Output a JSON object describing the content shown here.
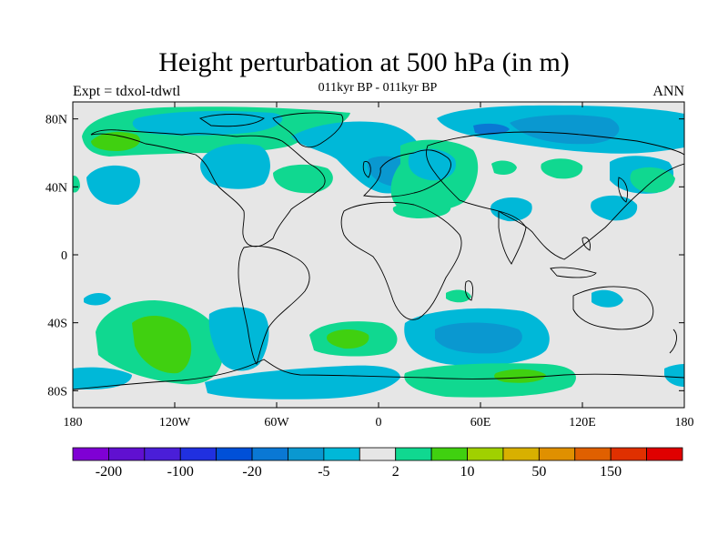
{
  "header": {
    "title": "Height perturbation at 500 hPa (in m)",
    "subtitle": "011kyr BP - 011kyr BP",
    "left_label": "Expt = tdxol-tdwtl",
    "right_label": "ANN"
  },
  "map": {
    "projection": "cylindrical-equidistant",
    "background_color": "#e6e6e6",
    "lon_ticks": [
      "180",
      "120W",
      "60W",
      "0",
      "60E",
      "120E",
      "180"
    ],
    "lat_ticks": [
      "80N",
      "40N",
      "0",
      "40S",
      "80S"
    ]
  },
  "colorbar": {
    "colors": [
      "#7f00d4",
      "#6010d0",
      "#4a1ed8",
      "#2030e0",
      "#0050d8",
      "#0a78d4",
      "#0a98d0",
      "#00b8d8",
      "#e6e6e6",
      "#10d890",
      "#40d010",
      "#a0d000",
      "#d8b000",
      "#e09000",
      "#e06000",
      "#e03000",
      "#e00000"
    ],
    "labels": [
      "-200",
      "-100",
      "-20",
      "-5",
      "2",
      "10",
      "50",
      "150"
    ]
  }
}
